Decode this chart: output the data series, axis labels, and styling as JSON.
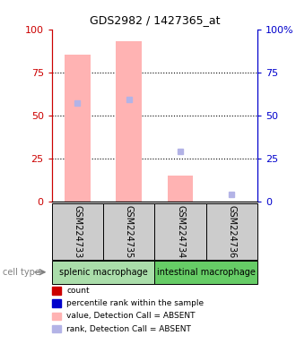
{
  "title": "GDS2982 / 1427365_at",
  "samples": [
    "GSM224733",
    "GSM224735",
    "GSM224734",
    "GSM224736"
  ],
  "bar_values": [
    85,
    93,
    15,
    0
  ],
  "rank_values": [
    57,
    59,
    29,
    4
  ],
  "bar_color_absent": "#ffb3b3",
  "rank_color_absent": "#b3b3e6",
  "ylim": [
    0,
    100
  ],
  "yticks": [
    0,
    25,
    50,
    75,
    100
  ],
  "left_axis_color": "#cc0000",
  "right_axis_color": "#0000cc",
  "cell_types": [
    "splenic macrophage",
    "intestinal macrophage"
  ],
  "cell_type_colors": [
    "#aaddaa",
    "#66cc66"
  ],
  "group_bg_color": "#cccccc",
  "legend_labels": [
    "count",
    "percentile rank within the sample",
    "value, Detection Call = ABSENT",
    "rank, Detection Call = ABSENT"
  ],
  "legend_colors": [
    "#cc0000",
    "#0000cc",
    "#ffb3b3",
    "#b3b3e6"
  ]
}
